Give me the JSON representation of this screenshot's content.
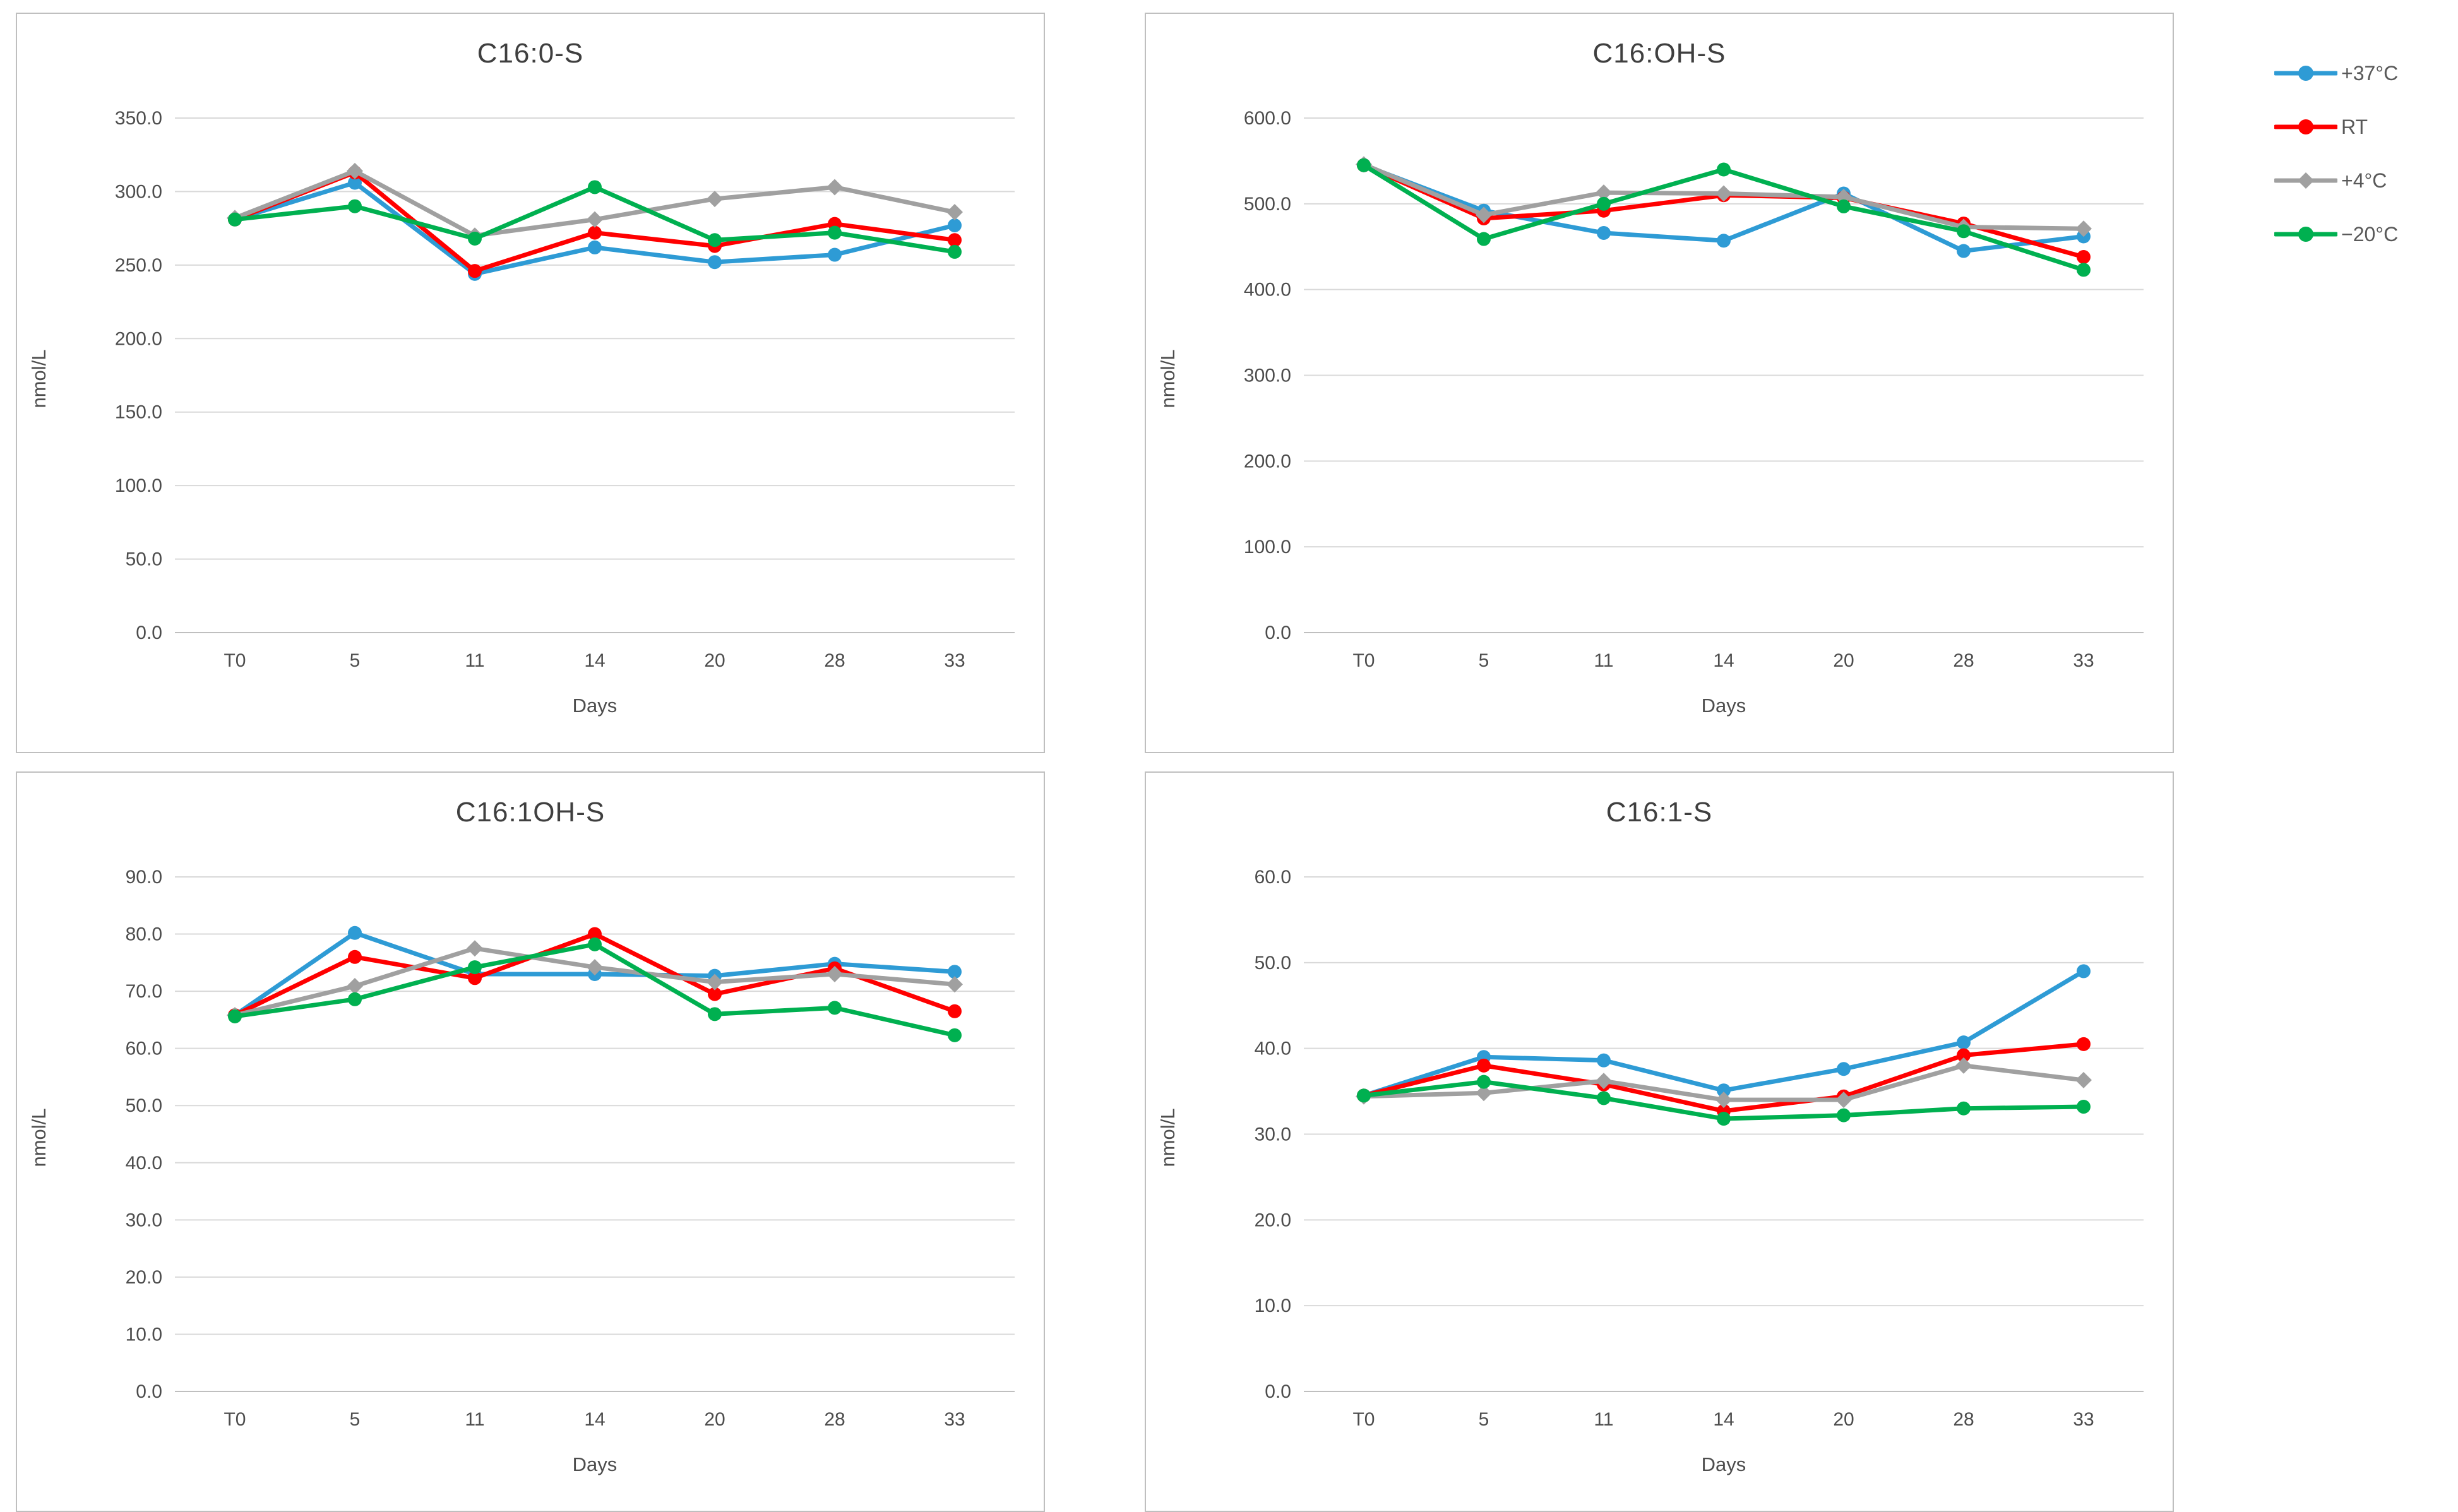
{
  "figure": {
    "background": "#ffffff",
    "grid_color": "#d9d9d9",
    "axis_text_color": "#4d4d4d",
    "title_color": "#3f3f3f",
    "panel_border_color": "#bfbfbf"
  },
  "legend": {
    "position": "outside-top-right",
    "items": [
      {
        "label": "+37°C",
        "color": "#2e9bd5",
        "marker": "circle"
      },
      {
        "label": "RT",
        "color": "#ff0000",
        "marker": "circle"
      },
      {
        "label": "+4°C",
        "color": "#a0a0a0",
        "marker": "diamond"
      },
      {
        "label": "−20°C",
        "color": "#00b050",
        "marker": "circle"
      }
    ]
  },
  "chart_data": [
    {
      "type": "line",
      "title": "C16:0-S",
      "xlabel": "Days",
      "ylabel": "nmol/L",
      "categories": [
        "T0",
        "5",
        "11",
        "14",
        "20",
        "28",
        "33"
      ],
      "ylim": [
        0,
        350
      ],
      "ytick_step": 50,
      "grid": true,
      "legend_position": "outside-figure-top-right",
      "series": [
        {
          "name": "+37°C",
          "color": "#2e9bd5",
          "marker": "circle",
          "values": [
            281,
            306,
            244,
            262,
            252,
            257,
            277
          ]
        },
        {
          "name": "RT",
          "color": "#ff0000",
          "marker": "circle",
          "values": [
            281,
            313,
            246,
            272,
            263,
            278,
            267
          ]
        },
        {
          "name": "+4°C",
          "color": "#a0a0a0",
          "marker": "diamond",
          "values": [
            282,
            314,
            270,
            281,
            295,
            303,
            286
          ]
        },
        {
          "name": "−20°C",
          "color": "#00b050",
          "marker": "circle",
          "values": [
            281,
            290,
            268,
            303,
            267,
            272,
            259
          ]
        }
      ]
    },
    {
      "type": "line",
      "title": "C16:OH-S",
      "xlabel": "Days",
      "ylabel": "nmol/L",
      "categories": [
        "T0",
        "5",
        "11",
        "14",
        "20",
        "28",
        "33"
      ],
      "ylim": [
        0,
        600
      ],
      "ytick_step": 100,
      "grid": true,
      "legend_position": "outside-figure-top-right",
      "series": [
        {
          "name": "+37°C",
          "color": "#2e9bd5",
          "marker": "circle",
          "values": [
            545,
            492,
            466,
            457,
            512,
            445,
            462
          ]
        },
        {
          "name": "RT",
          "color": "#ff0000",
          "marker": "circle",
          "values": [
            545,
            483,
            492,
            510,
            507,
            477,
            438
          ]
        },
        {
          "name": "+4°C",
          "color": "#a0a0a0",
          "marker": "diamond",
          "values": [
            546,
            487,
            513,
            512,
            508,
            473,
            471
          ]
        },
        {
          "name": "−20°C",
          "color": "#00b050",
          "marker": "circle",
          "values": [
            545,
            459,
            500,
            540,
            497,
            468,
            423
          ]
        }
      ]
    },
    {
      "type": "line",
      "title": "C16:1OH-S",
      "xlabel": "Days",
      "ylabel": "nmol/L",
      "categories": [
        "T0",
        "5",
        "11",
        "14",
        "20",
        "28",
        "33"
      ],
      "ylim": [
        0,
        90
      ],
      "ytick_step": 10,
      "grid": true,
      "legend_position": "outside-figure-top-right",
      "series": [
        {
          "name": "+37°C",
          "color": "#2e9bd5",
          "marker": "circle",
          "values": [
            65.8,
            80.2,
            73.0,
            73.0,
            72.7,
            74.8,
            73.4
          ]
        },
        {
          "name": "RT",
          "color": "#ff0000",
          "marker": "circle",
          "values": [
            65.8,
            76.0,
            72.3,
            80.0,
            69.5,
            74.0,
            66.5
          ]
        },
        {
          "name": "+4°C",
          "color": "#a0a0a0",
          "marker": "diamond",
          "values": [
            65.8,
            70.9,
            77.5,
            74.2,
            71.6,
            73.0,
            71.2
          ]
        },
        {
          "name": "−20°C",
          "color": "#00b050",
          "marker": "circle",
          "values": [
            65.6,
            68.6,
            74.2,
            78.2,
            66.0,
            67.1,
            62.3
          ]
        }
      ]
    },
    {
      "type": "line",
      "title": "C16:1-S",
      "xlabel": "Days",
      "ylabel": "nmol/L",
      "categories": [
        "T0",
        "5",
        "11",
        "14",
        "20",
        "28",
        "33"
      ],
      "ylim": [
        0,
        60
      ],
      "ytick_step": 10,
      "grid": true,
      "legend_position": "outside-figure-top-right",
      "series": [
        {
          "name": "+37°C",
          "color": "#2e9bd5",
          "marker": "circle",
          "values": [
            34.5,
            39.0,
            38.6,
            35.1,
            37.6,
            40.7,
            49.0
          ]
        },
        {
          "name": "RT",
          "color": "#ff0000",
          "marker": "circle",
          "values": [
            34.5,
            38.0,
            35.8,
            32.7,
            34.4,
            39.2,
            40.5
          ]
        },
        {
          "name": "+4°C",
          "color": "#a0a0a0",
          "marker": "diamond",
          "values": [
            34.4,
            34.8,
            36.2,
            34.0,
            34.0,
            38.0,
            36.3
          ]
        },
        {
          "name": "−20°C",
          "color": "#00b050",
          "marker": "circle",
          "values": [
            34.5,
            36.1,
            34.2,
            31.8,
            32.2,
            33.0,
            33.2
          ]
        }
      ]
    }
  ]
}
